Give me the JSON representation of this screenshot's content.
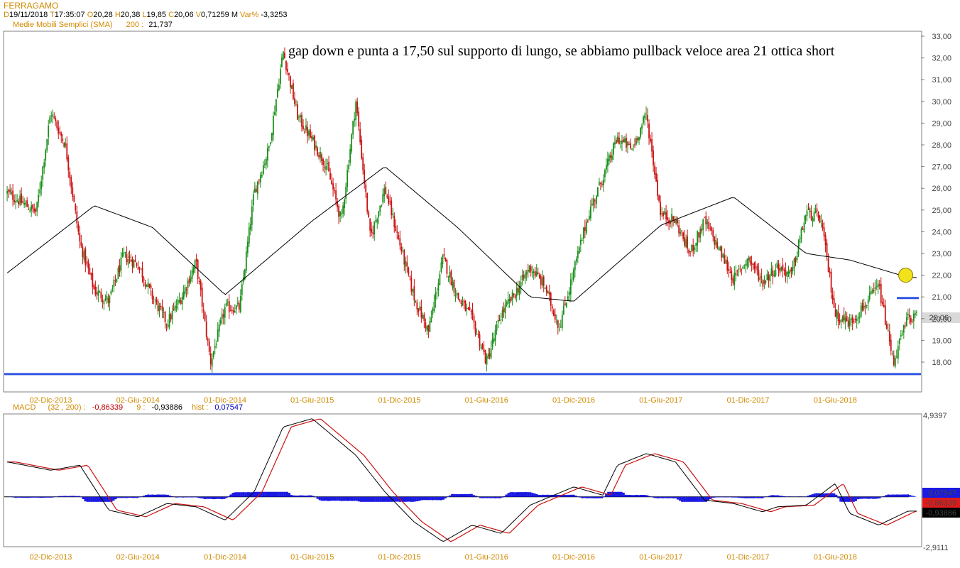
{
  "header": {
    "title": "FERRAGAMO",
    "quote": {
      "date_key": "D",
      "date": "19/11/2018",
      "time_key": "T",
      "time": "17:35:07",
      "open_key": "O",
      "open": "20,28",
      "high_key": "H",
      "high": "20,38",
      "low_key": "L",
      "low": "19,85",
      "close_key": "C",
      "close": "20,06",
      "volume_key": "V",
      "volume": "0,71259 M",
      "var_key": "Var%",
      "var": "-3,3253"
    },
    "sma_label": "Medie Mobili Semplici (SMA)",
    "sma_period": "200 :",
    "sma_value": "21,737"
  },
  "macd_header": {
    "label": "MACD",
    "params": "(32 , 200) :",
    "macd_value": "-0,86339",
    "signal_period": "9 :",
    "signal_value": "-0,93886",
    "hist_label": "hist :",
    "hist_value": "0,07547"
  },
  "annotation": "gap down e punta a 17,50 sul supporto di lungo, se abbiamo pullback veloce area 21 ottica short",
  "colors": {
    "label_orange": "#d08a00",
    "candle_up": "#1a8f1a",
    "candle_down": "#cc1111",
    "sma": "#000000",
    "support_line": "#2f55e0",
    "macd_line": "#000000",
    "signal_line": "#cc1111",
    "histogram": "#1a1ae0",
    "highlight_circle": "#f2e21a"
  },
  "chart_data": [
    {
      "type": "candlestick",
      "title": "FERRAGAMO",
      "y_ticks": [
        "33,00",
        "32,00",
        "31,00",
        "30,00",
        "29,00",
        "28,00",
        "27,00",
        "26,00",
        "25,00",
        "24,00",
        "23,00",
        "22,00",
        "21,00",
        "20,00",
        "19,00",
        "18,00"
      ],
      "ylim": [
        17.0,
        33.0
      ],
      "x_ticks": [
        "02-Dic-2013",
        "02-Giu-2014",
        "01-Dic-2014",
        "01-Giu-2015",
        "01-Dic-2015",
        "01-Giu-2016",
        "01-Dic-2016",
        "01-Giu-2017",
        "01-Dic-2017",
        "01-Giu-2018"
      ],
      "price_path": [
        {
          "x": "2013-09",
          "y": 25.8
        },
        {
          "x": "2013-11",
          "y": 24.9
        },
        {
          "x": "2013-12",
          "y": 29.5
        },
        {
          "x": "2014-01",
          "y": 28.0
        },
        {
          "x": "2014-02",
          "y": 23.5
        },
        {
          "x": "2014-03",
          "y": 21.3
        },
        {
          "x": "2014-04",
          "y": 20.8
        },
        {
          "x": "2014-05",
          "y": 22.9
        },
        {
          "x": "2014-06",
          "y": 22.5
        },
        {
          "x": "2014-07",
          "y": 21.0
        },
        {
          "x": "2014-08",
          "y": 19.8
        },
        {
          "x": "2014-09",
          "y": 21.0
        },
        {
          "x": "2014-10",
          "y": 22.6
        },
        {
          "x": "2014-11",
          "y": 18.0
        },
        {
          "x": "2014-12",
          "y": 20.5
        },
        {
          "x": "2015-01",
          "y": 20.5
        },
        {
          "x": "2015-02",
          "y": 25.8
        },
        {
          "x": "2015-03",
          "y": 27.8
        },
        {
          "x": "2015-04",
          "y": 32.3
        },
        {
          "x": "2015-05",
          "y": 29.3
        },
        {
          "x": "2015-06",
          "y": 28.2
        },
        {
          "x": "2015-07",
          "y": 27.0
        },
        {
          "x": "2015-08",
          "y": 24.5
        },
        {
          "x": "2015-09",
          "y": 30.0
        },
        {
          "x": "2015-10",
          "y": 23.7
        },
        {
          "x": "2015-11",
          "y": 26.0
        },
        {
          "x": "2015-12",
          "y": 23.5
        },
        {
          "x": "2016-01",
          "y": 21.0
        },
        {
          "x": "2016-02",
          "y": 19.4
        },
        {
          "x": "2016-03",
          "y": 22.8
        },
        {
          "x": "2016-04",
          "y": 21.0
        },
        {
          "x": "2016-05",
          "y": 20.0
        },
        {
          "x": "2016-06",
          "y": 18.0
        },
        {
          "x": "2016-07",
          "y": 20.2
        },
        {
          "x": "2016-08",
          "y": 21.2
        },
        {
          "x": "2016-09",
          "y": 22.4
        },
        {
          "x": "2016-10",
          "y": 21.5
        },
        {
          "x": "2016-11",
          "y": 19.6
        },
        {
          "x": "2016-12",
          "y": 22.2
        },
        {
          "x": "2017-01",
          "y": 24.8
        },
        {
          "x": "2017-02",
          "y": 26.5
        },
        {
          "x": "2017-03",
          "y": 28.3
        },
        {
          "x": "2017-04",
          "y": 27.8
        },
        {
          "x": "2017-05",
          "y": 29.4
        },
        {
          "x": "2017-06",
          "y": 24.8
        },
        {
          "x": "2017-07",
          "y": 24.5
        },
        {
          "x": "2017-08",
          "y": 23.0
        },
        {
          "x": "2017-09",
          "y": 24.5
        },
        {
          "x": "2017-10",
          "y": 23.2
        },
        {
          "x": "2017-11",
          "y": 21.8
        },
        {
          "x": "2017-12",
          "y": 22.8
        },
        {
          "x": "2018-01",
          "y": 21.7
        },
        {
          "x": "2018-02",
          "y": 22.4
        },
        {
          "x": "2018-03",
          "y": 22.0
        },
        {
          "x": "2018-04",
          "y": 24.9
        },
        {
          "x": "2018-05",
          "y": 24.6
        },
        {
          "x": "2018-06",
          "y": 20.2
        },
        {
          "x": "2018-07",
          "y": 19.8
        },
        {
          "x": "2018-08",
          "y": 20.6
        },
        {
          "x": "2018-09",
          "y": 21.5
        },
        {
          "x": "2018-10",
          "y": 18.0
        },
        {
          "x": "2018-11",
          "y": 20.06
        }
      ],
      "sma200_path": [
        {
          "x": "2013-09",
          "y": 22.1
        },
        {
          "x": "2014-03",
          "y": 25.2
        },
        {
          "x": "2014-07",
          "y": 24.2
        },
        {
          "x": "2014-12",
          "y": 21.1
        },
        {
          "x": "2015-06",
          "y": 24.5
        },
        {
          "x": "2015-11",
          "y": 27.0
        },
        {
          "x": "2016-04",
          "y": 24.2
        },
        {
          "x": "2016-09",
          "y": 21.0
        },
        {
          "x": "2016-12",
          "y": 20.8
        },
        {
          "x": "2017-06",
          "y": 24.3
        },
        {
          "x": "2017-11",
          "y": 25.6
        },
        {
          "x": "2018-04",
          "y": 23.0
        },
        {
          "x": "2018-07",
          "y": 22.7
        },
        {
          "x": "2018-11",
          "y": 21.9
        }
      ],
      "support_level": 17.45,
      "resistance_marker_level": 20.95,
      "last_price_label": "20,06",
      "highlight_circle_level": 22.0
    },
    {
      "type": "line",
      "title": "MACD",
      "y_ticks": [
        "4,9397",
        "-2,9111"
      ],
      "ylim": [
        -2.9111,
        4.9397
      ],
      "series_labels": [
        "0,07547",
        "-0,86339",
        "-0,93886"
      ],
      "macd_path": [
        {
          "x": "2013-09",
          "y": 2.1
        },
        {
          "x": "2013-12",
          "y": 1.6
        },
        {
          "x": "2014-02",
          "y": 1.9
        },
        {
          "x": "2014-04",
          "y": -0.8
        },
        {
          "x": "2014-06",
          "y": -1.2
        },
        {
          "x": "2014-08",
          "y": -0.4
        },
        {
          "x": "2014-10",
          "y": -0.6
        },
        {
          "x": "2014-12",
          "y": -1.4
        },
        {
          "x": "2015-02",
          "y": 0.3
        },
        {
          "x": "2015-04",
          "y": 4.2
        },
        {
          "x": "2015-06",
          "y": 4.7
        },
        {
          "x": "2015-09",
          "y": 2.5
        },
        {
          "x": "2015-11",
          "y": 0.3
        },
        {
          "x": "2016-01",
          "y": -1.5
        },
        {
          "x": "2016-03",
          "y": -2.7
        },
        {
          "x": "2016-05",
          "y": -1.7
        },
        {
          "x": "2016-07",
          "y": -2.2
        },
        {
          "x": "2016-09",
          "y": -0.5
        },
        {
          "x": "2016-12",
          "y": 0.6
        },
        {
          "x": "2017-02",
          "y": 0.1
        },
        {
          "x": "2017-03",
          "y": 1.9
        },
        {
          "x": "2017-05",
          "y": 2.6
        },
        {
          "x": "2017-07",
          "y": 2.1
        },
        {
          "x": "2017-09",
          "y": -0.2
        },
        {
          "x": "2017-11",
          "y": -0.4
        },
        {
          "x": "2018-01",
          "y": -0.9
        },
        {
          "x": "2018-02",
          "y": -0.6
        },
        {
          "x": "2018-04",
          "y": -0.5
        },
        {
          "x": "2018-06",
          "y": 0.8
        },
        {
          "x": "2018-07",
          "y": -1.0
        },
        {
          "x": "2018-09",
          "y": -1.7
        },
        {
          "x": "2018-11",
          "y": -0.86
        }
      ],
      "histogram_range": [
        -0.3,
        0.3
      ]
    }
  ]
}
